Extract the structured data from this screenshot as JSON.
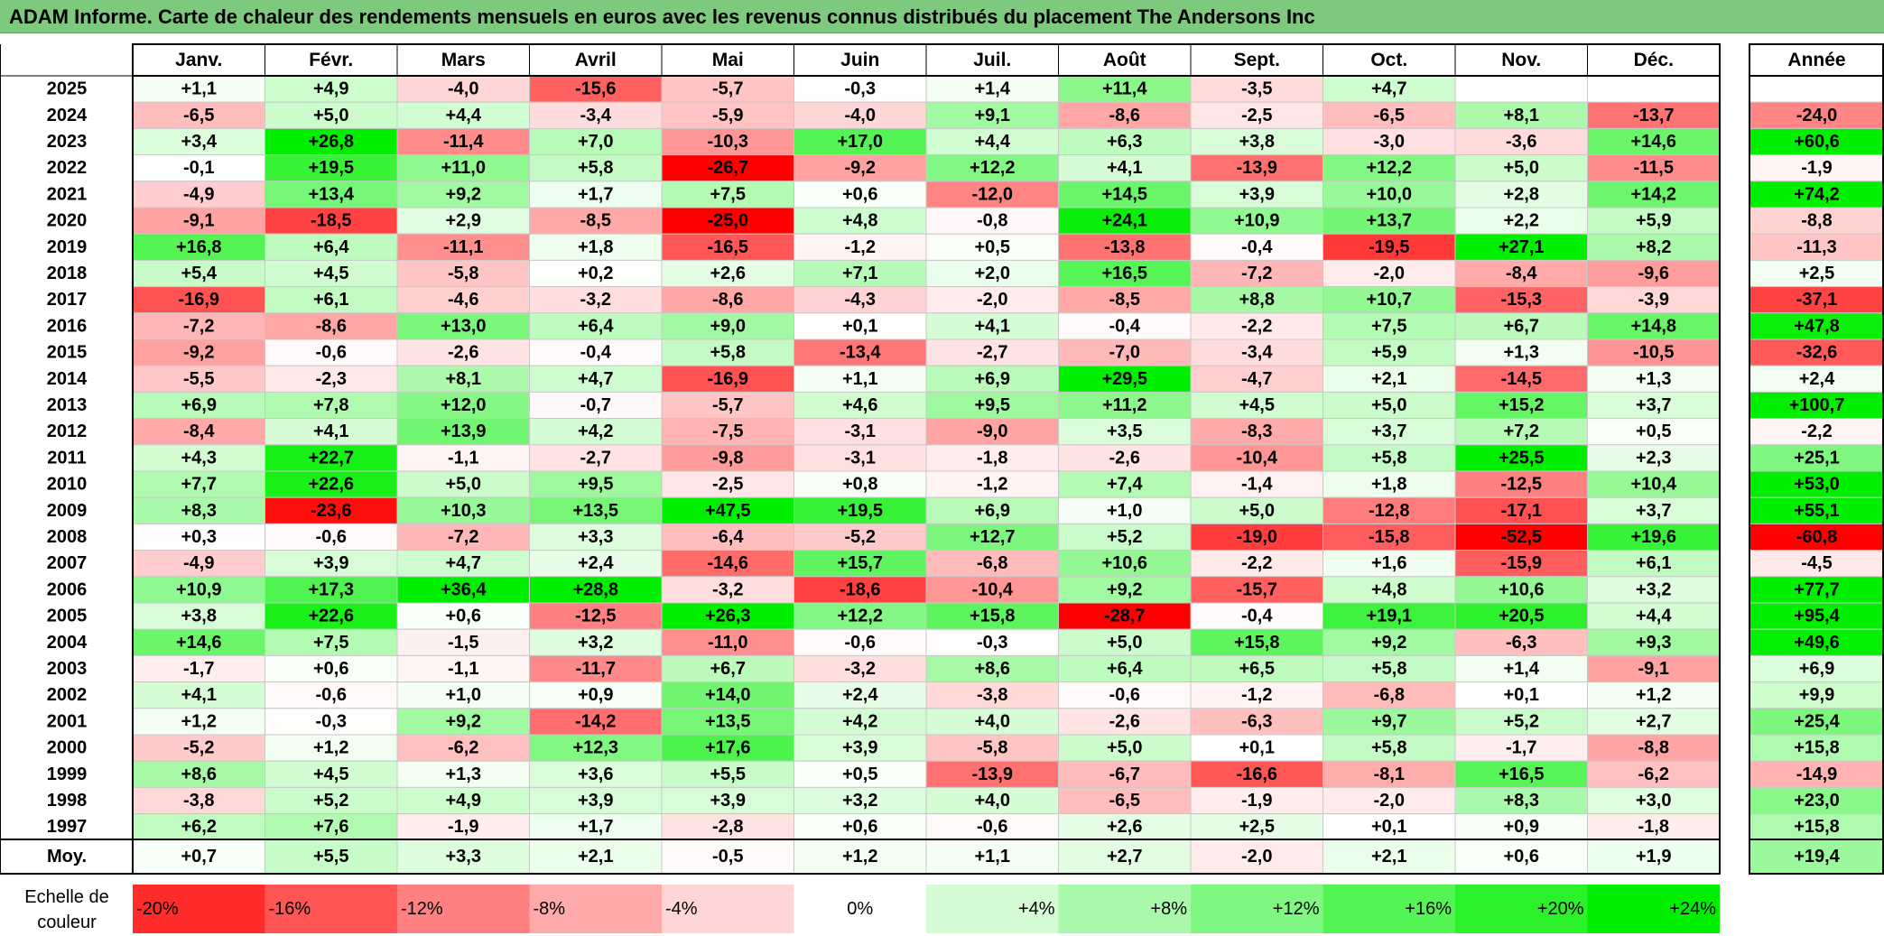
{
  "title": "ADAM Informe. Carte de chaleur des rendements mensuels en euros avec les revenus connus distribués du placement The Andersons Inc",
  "chart_data": {
    "type": "heatmap",
    "title": "ADAM Informe. Carte de chaleur des rendements mensuels en euros avec les revenus connus distribués du placement The Andersons Inc",
    "months": [
      "Janv.",
      "Févr.",
      "Mars",
      "Avril",
      "Mai",
      "Juin",
      "Juil.",
      "Août",
      "Sept.",
      "Oct.",
      "Nov.",
      "Déc."
    ],
    "annual_label": "Année",
    "average_label": "Moy.",
    "rows": [
      {
        "year": "2025",
        "values": [
          1.1,
          4.9,
          -4.0,
          -15.6,
          -5.7,
          -0.3,
          1.4,
          11.4,
          -3.5,
          4.7,
          null,
          null
        ],
        "annual": null
      },
      {
        "year": "2024",
        "values": [
          -6.5,
          5.0,
          4.4,
          -3.4,
          -5.9,
          -4.0,
          9.1,
          -8.6,
          -2.5,
          -6.5,
          8.1,
          -13.7
        ],
        "annual": -24.0
      },
      {
        "year": "2023",
        "values": [
          3.4,
          26.8,
          -11.4,
          7.0,
          -10.3,
          17.0,
          4.4,
          6.3,
          3.8,
          -3.0,
          -3.6,
          14.6
        ],
        "annual": 60.6
      },
      {
        "year": "2022",
        "values": [
          -0.1,
          19.5,
          11.0,
          5.8,
          -26.7,
          -9.2,
          12.2,
          4.1,
          -13.9,
          12.2,
          5.0,
          -11.5
        ],
        "annual": -1.9
      },
      {
        "year": "2021",
        "values": [
          -4.9,
          13.4,
          9.2,
          1.7,
          7.5,
          0.6,
          -12.0,
          14.5,
          3.9,
          10.0,
          2.8,
          14.2
        ],
        "annual": 74.2
      },
      {
        "year": "2020",
        "values": [
          -9.1,
          -18.5,
          2.9,
          -8.5,
          -25.0,
          4.8,
          -0.8,
          24.1,
          10.9,
          13.7,
          2.2,
          5.9
        ],
        "annual": -8.8
      },
      {
        "year": "2019",
        "values": [
          16.8,
          6.4,
          -11.1,
          1.8,
          -16.5,
          -1.2,
          0.5,
          -13.8,
          -0.4,
          -19.5,
          27.1,
          8.2
        ],
        "annual": -11.3
      },
      {
        "year": "2018",
        "values": [
          5.4,
          4.5,
          -5.8,
          0.2,
          2.6,
          7.1,
          2.0,
          16.5,
          -7.2,
          -2.0,
          -8.4,
          -9.6
        ],
        "annual": 2.5
      },
      {
        "year": "2017",
        "values": [
          -16.9,
          6.1,
          -4.6,
          -3.2,
          -8.6,
          -4.3,
          -2.0,
          -8.5,
          8.8,
          10.7,
          -15.3,
          -3.9
        ],
        "annual": -37.1
      },
      {
        "year": "2016",
        "values": [
          -7.2,
          -8.6,
          13.0,
          6.4,
          9.0,
          0.1,
          4.1,
          -0.4,
          -2.2,
          7.5,
          6.7,
          14.8
        ],
        "annual": 47.8
      },
      {
        "year": "2015",
        "values": [
          -9.2,
          -0.6,
          -2.6,
          -0.4,
          5.8,
          -13.4,
          -2.7,
          -7.0,
          -3.4,
          5.9,
          1.3,
          -10.5
        ],
        "annual": -32.6
      },
      {
        "year": "2014",
        "values": [
          -5.5,
          -2.3,
          8.1,
          4.7,
          -16.9,
          1.1,
          6.9,
          29.5,
          -4.7,
          2.1,
          -14.5,
          1.3
        ],
        "annual": 2.4
      },
      {
        "year": "2013",
        "values": [
          6.9,
          7.8,
          12.0,
          -0.7,
          -5.7,
          4.6,
          9.5,
          11.2,
          4.5,
          5.0,
          15.2,
          3.7
        ],
        "annual": 100.7
      },
      {
        "year": "2012",
        "values": [
          -8.4,
          4.1,
          13.9,
          4.2,
          -7.5,
          -3.1,
          -9.0,
          3.5,
          -8.3,
          3.7,
          7.2,
          0.5
        ],
        "annual": -2.2
      },
      {
        "year": "2011",
        "values": [
          4.3,
          22.7,
          -1.1,
          -2.7,
          -9.8,
          -3.1,
          -1.8,
          -2.6,
          -10.4,
          5.8,
          25.5,
          2.3
        ],
        "annual": 25.1
      },
      {
        "year": "2010",
        "values": [
          7.7,
          22.6,
          5.0,
          9.5,
          -2.5,
          0.8,
          -1.2,
          7.4,
          -1.4,
          1.8,
          -12.5,
          10.4
        ],
        "annual": 53.0
      },
      {
        "year": "2009",
        "values": [
          8.3,
          -23.6,
          10.3,
          13.5,
          47.5,
          19.5,
          6.9,
          1.0,
          5.0,
          -12.8,
          -17.1,
          3.7
        ],
        "annual": 55.1
      },
      {
        "year": "2008",
        "values": [
          0.3,
          -0.6,
          -7.2,
          3.3,
          -6.4,
          -5.2,
          12.7,
          5.2,
          -19.0,
          -15.8,
          -52.5,
          19.6
        ],
        "annual": -60.8
      },
      {
        "year": "2007",
        "values": [
          -4.9,
          3.9,
          4.7,
          2.4,
          -14.6,
          15.7,
          -6.8,
          10.6,
          -2.2,
          1.6,
          -15.9,
          6.1
        ],
        "annual": -4.5
      },
      {
        "year": "2006",
        "values": [
          10.9,
          17.3,
          36.4,
          28.8,
          -3.2,
          -18.6,
          -10.4,
          9.2,
          -15.7,
          4.8,
          10.6,
          3.2
        ],
        "annual": 77.7
      },
      {
        "year": "2005",
        "values": [
          3.8,
          22.6,
          0.6,
          -12.5,
          26.3,
          12.2,
          15.8,
          -28.7,
          -0.4,
          19.1,
          20.5,
          4.4
        ],
        "annual": 95.4
      },
      {
        "year": "2004",
        "values": [
          14.6,
          7.5,
          -1.5,
          3.2,
          -11.0,
          -0.6,
          -0.3,
          5.0,
          15.8,
          9.2,
          -6.3,
          9.3
        ],
        "annual": 49.6
      },
      {
        "year": "2003",
        "values": [
          -1.7,
          0.6,
          -1.1,
          -11.7,
          6.7,
          -3.2,
          8.6,
          6.4,
          6.5,
          5.8,
          1.4,
          -9.1
        ],
        "annual": 6.9
      },
      {
        "year": "2002",
        "values": [
          4.1,
          -0.6,
          1.0,
          0.9,
          14.0,
          2.4,
          -3.8,
          -0.6,
          -1.2,
          -6.8,
          0.1,
          1.2
        ],
        "annual": 9.9
      },
      {
        "year": "2001",
        "values": [
          1.2,
          -0.3,
          9.2,
          -14.2,
          13.5,
          4.2,
          4.0,
          -2.6,
          -6.3,
          9.7,
          5.2,
          2.7
        ],
        "annual": 25.4
      },
      {
        "year": "2000",
        "values": [
          -5.2,
          1.2,
          -6.2,
          12.3,
          17.6,
          3.9,
          -5.8,
          5.0,
          0.1,
          5.8,
          -1.7,
          -8.8
        ],
        "annual": 15.8
      },
      {
        "year": "1999",
        "values": [
          8.6,
          4.5,
          1.3,
          3.6,
          5.5,
          0.5,
          -13.9,
          -6.7,
          -16.6,
          -8.1,
          16.5,
          -6.2
        ],
        "annual": -14.9
      },
      {
        "year": "1998",
        "values": [
          -3.8,
          5.2,
          4.9,
          3.9,
          3.9,
          3.2,
          4.0,
          -6.5,
          -1.9,
          -2.0,
          8.3,
          3.0
        ],
        "annual": 23.0
      },
      {
        "year": "1997",
        "values": [
          6.2,
          7.6,
          -1.9,
          1.7,
          -2.8,
          0.6,
          -0.6,
          2.6,
          2.5,
          0.1,
          0.9,
          -1.8
        ],
        "annual": 15.8
      }
    ],
    "averages": [
      0.7,
      5.5,
      3.3,
      2.1,
      -0.5,
      1.2,
      1.1,
      2.7,
      -2.0,
      2.1,
      0.6,
      1.9
    ],
    "average_annual": 19.4,
    "scale_label": [
      "Echelle de",
      "couleur"
    ],
    "scale_steps": [
      {
        "label": "-20%",
        "value": -20
      },
      {
        "label": "-16%",
        "value": -16
      },
      {
        "label": "-12%",
        "value": -12
      },
      {
        "label": "-8%",
        "value": -8
      },
      {
        "label": "-4%",
        "value": -4
      },
      {
        "label": "0%",
        "value": 0
      },
      {
        "label": "+4%",
        "value": 4
      },
      {
        "label": "+8%",
        "value": 8
      },
      {
        "label": "+12%",
        "value": 12
      },
      {
        "label": "+16%",
        "value": 16
      },
      {
        "label": "+20%",
        "value": 20
      },
      {
        "label": "+24%",
        "value": 24
      }
    ],
    "colors": {
      "negative": "#ff0000",
      "neutral": "#ffffff",
      "positive": "#00ee00",
      "title_bar": "#7dc97d"
    }
  }
}
